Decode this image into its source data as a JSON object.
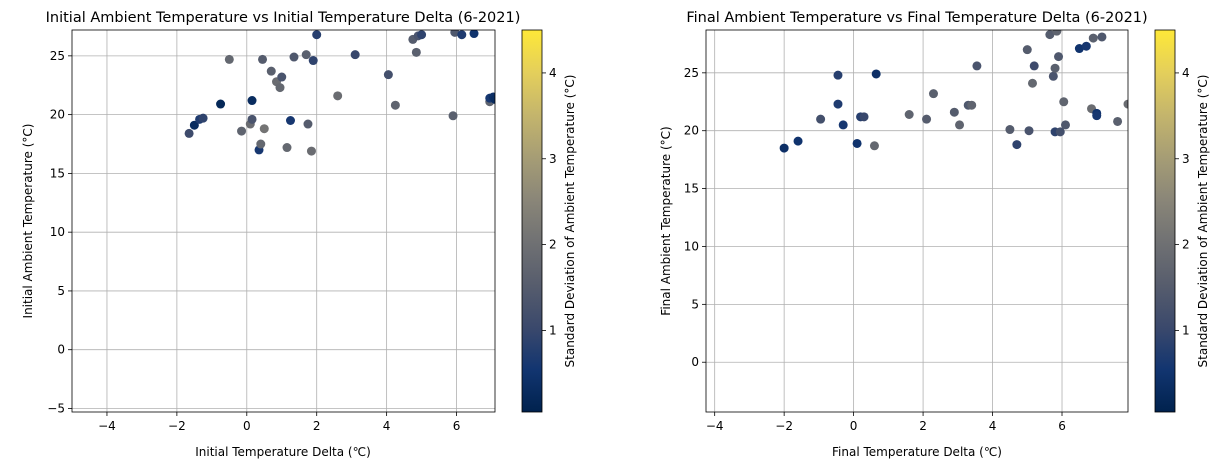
{
  "chart_data": [
    {
      "type": "scatter",
      "title": "Initial Ambient Temperature vs Initial Temperature Delta (6-2021)",
      "xlabel": "Initial Temperature Delta (℃)",
      "ylabel": "Initial Ambient Temperature (°C)",
      "xlim": [
        -5,
        7.1
      ],
      "ylim": [
        -5.3,
        27.2
      ],
      "xticks": [
        -4,
        -2,
        0,
        2,
        4,
        6
      ],
      "yticks": [
        -5,
        0,
        5,
        10,
        15,
        20,
        25
      ],
      "grid": true,
      "colorbar": {
        "label": "Standard Deviation of Ambient Temperature (°C)",
        "min": 0.05,
        "max": 4.5,
        "ticks": [
          1,
          2,
          3,
          4
        ],
        "colormap": "cividis",
        "colors": [
          "#00224e",
          "#123570",
          "#3b496c",
          "#575d6d",
          "#707173",
          "#8a8678",
          "#a69d75",
          "#c4b56c",
          "#e4cf5b",
          "#fee838"
        ]
      },
      "points": [
        {
          "x": -1.65,
          "y": 18.4,
          "c": 1.1
        },
        {
          "x": -1.5,
          "y": 19.1,
          "c": 0.3
        },
        {
          "x": -1.35,
          "y": 19.6,
          "c": 0.7
        },
        {
          "x": -1.25,
          "y": 19.7,
          "c": 0.9
        },
        {
          "x": -0.75,
          "y": 20.9,
          "c": 0.2
        },
        {
          "x": -0.5,
          "y": 24.7,
          "c": 1.8
        },
        {
          "x": -0.15,
          "y": 18.6,
          "c": 1.7
        },
        {
          "x": 0.1,
          "y": 19.2,
          "c": 1.9
        },
        {
          "x": 0.15,
          "y": 19.6,
          "c": 1.3
        },
        {
          "x": 0.15,
          "y": 21.2,
          "c": 0.3
        },
        {
          "x": 0.35,
          "y": 17.0,
          "c": 0.6
        },
        {
          "x": 0.4,
          "y": 17.5,
          "c": 1.8
        },
        {
          "x": 0.45,
          "y": 24.7,
          "c": 1.5
        },
        {
          "x": 0.5,
          "y": 18.8,
          "c": 2.1
        },
        {
          "x": 0.7,
          "y": 23.7,
          "c": 1.6
        },
        {
          "x": 0.85,
          "y": 22.8,
          "c": 1.9
        },
        {
          "x": 0.95,
          "y": 22.3,
          "c": 1.8
        },
        {
          "x": 1.0,
          "y": 23.2,
          "c": 1.3
        },
        {
          "x": 1.15,
          "y": 17.2,
          "c": 1.8
        },
        {
          "x": 1.25,
          "y": 19.5,
          "c": 0.6
        },
        {
          "x": 1.35,
          "y": 24.9,
          "c": 1.4
        },
        {
          "x": 1.7,
          "y": 25.1,
          "c": 1.6
        },
        {
          "x": 1.75,
          "y": 19.2,
          "c": 1.5
        },
        {
          "x": 1.85,
          "y": 16.9,
          "c": 1.9
        },
        {
          "x": 1.9,
          "y": 24.6,
          "c": 0.9
        },
        {
          "x": 2.0,
          "y": 26.8,
          "c": 0.8
        },
        {
          "x": 2.6,
          "y": 21.6,
          "c": 1.9
        },
        {
          "x": 3.1,
          "y": 25.1,
          "c": 1.0
        },
        {
          "x": 4.05,
          "y": 23.4,
          "c": 1.2
        },
        {
          "x": 4.25,
          "y": 20.8,
          "c": 1.7
        },
        {
          "x": 4.75,
          "y": 26.4,
          "c": 1.5
        },
        {
          "x": 4.85,
          "y": 25.3,
          "c": 1.6
        },
        {
          "x": 4.9,
          "y": 26.7,
          "c": 1.3
        },
        {
          "x": 5.0,
          "y": 26.8,
          "c": 0.9
        },
        {
          "x": 5.9,
          "y": 19.9,
          "c": 1.6
        },
        {
          "x": 5.95,
          "y": 27.0,
          "c": 1.4
        },
        {
          "x": 6.15,
          "y": 26.8,
          "c": 0.7
        },
        {
          "x": 6.5,
          "y": 26.9,
          "c": 0.5
        },
        {
          "x": 6.95,
          "y": 21.1,
          "c": 1.7
        },
        {
          "x": 6.95,
          "y": 21.4,
          "c": 0.6
        },
        {
          "x": 7.05,
          "y": 21.5,
          "c": 0.4
        },
        {
          "x": 7.1,
          "y": 21.3,
          "c": 0.3
        }
      ]
    },
    {
      "type": "scatter",
      "title": "Final Ambient Temperature vs Final Temperature Delta (6-2021)",
      "xlabel": "Final Temperature Delta (℃)",
      "ylabel": "Final Ambient Temperature (°C)",
      "xlim": [
        -4.25,
        7.9
      ],
      "ylim": [
        -4.3,
        28.7
      ],
      "xticks": [
        -4,
        -2,
        0,
        2,
        4,
        6
      ],
      "yticks": [
        0,
        5,
        10,
        15,
        20,
        25
      ],
      "grid": true,
      "colorbar": {
        "label": "Standard Deviation of Ambient Temperature (°C)",
        "min": 0.05,
        "max": 4.5,
        "ticks": [
          1,
          2,
          3,
          4
        ],
        "colormap": "cividis",
        "colors": [
          "#00224e",
          "#123570",
          "#3b496c",
          "#575d6d",
          "#707173",
          "#8a8678",
          "#a69d75",
          "#c4b56c",
          "#e4cf5b",
          "#fee838"
        ]
      },
      "points": [
        {
          "x": -2.0,
          "y": 18.5,
          "c": 0.4
        },
        {
          "x": -1.6,
          "y": 19.1,
          "c": 0.5
        },
        {
          "x": -0.95,
          "y": 21.0,
          "c": 1.2
        },
        {
          "x": -0.45,
          "y": 24.8,
          "c": 0.8
        },
        {
          "x": -0.45,
          "y": 22.3,
          "c": 0.7
        },
        {
          "x": -0.3,
          "y": 20.5,
          "c": 0.6
        },
        {
          "x": 0.1,
          "y": 18.9,
          "c": 0.5
        },
        {
          "x": 0.2,
          "y": 21.2,
          "c": 0.8
        },
        {
          "x": 0.3,
          "y": 21.2,
          "c": 1.0
        },
        {
          "x": 0.6,
          "y": 18.7,
          "c": 1.8
        },
        {
          "x": 0.65,
          "y": 24.9,
          "c": 0.4
        },
        {
          "x": 1.6,
          "y": 21.4,
          "c": 1.7
        },
        {
          "x": 2.1,
          "y": 21.0,
          "c": 1.5
        },
        {
          "x": 2.3,
          "y": 23.2,
          "c": 1.6
        },
        {
          "x": 2.9,
          "y": 21.6,
          "c": 1.5
        },
        {
          "x": 3.05,
          "y": 20.5,
          "c": 1.7
        },
        {
          "x": 3.3,
          "y": 22.2,
          "c": 1.4
        },
        {
          "x": 3.4,
          "y": 22.2,
          "c": 1.7
        },
        {
          "x": 3.55,
          "y": 25.6,
          "c": 1.3
        },
        {
          "x": 4.5,
          "y": 20.1,
          "c": 1.5
        },
        {
          "x": 4.7,
          "y": 18.8,
          "c": 0.9
        },
        {
          "x": 5.0,
          "y": 27.0,
          "c": 1.5
        },
        {
          "x": 5.05,
          "y": 20.0,
          "c": 1.3
        },
        {
          "x": 5.15,
          "y": 24.1,
          "c": 1.8
        },
        {
          "x": 5.2,
          "y": 25.6,
          "c": 1.1
        },
        {
          "x": 5.65,
          "y": 28.3,
          "c": 1.5
        },
        {
          "x": 5.75,
          "y": 24.7,
          "c": 1.3
        },
        {
          "x": 5.8,
          "y": 25.4,
          "c": 1.6
        },
        {
          "x": 5.8,
          "y": 19.9,
          "c": 0.9
        },
        {
          "x": 5.85,
          "y": 28.6,
          "c": 1.7
        },
        {
          "x": 5.9,
          "y": 26.4,
          "c": 1.4
        },
        {
          "x": 5.95,
          "y": 19.9,
          "c": 1.2
        },
        {
          "x": 6.05,
          "y": 22.5,
          "c": 1.7
        },
        {
          "x": 6.1,
          "y": 20.5,
          "c": 1.4
        },
        {
          "x": 6.5,
          "y": 27.1,
          "c": 0.5
        },
        {
          "x": 6.7,
          "y": 27.3,
          "c": 0.6
        },
        {
          "x": 6.85,
          "y": 21.9,
          "c": 1.9
        },
        {
          "x": 6.9,
          "y": 28.0,
          "c": 1.6
        },
        {
          "x": 7.0,
          "y": 21.5,
          "c": 0.5
        },
        {
          "x": 7.0,
          "y": 21.3,
          "c": 0.6
        },
        {
          "x": 7.15,
          "y": 28.1,
          "c": 1.4
        },
        {
          "x": 7.6,
          "y": 20.8,
          "c": 1.6
        },
        {
          "x": 7.9,
          "y": 22.3,
          "c": 1.9
        }
      ]
    }
  ]
}
